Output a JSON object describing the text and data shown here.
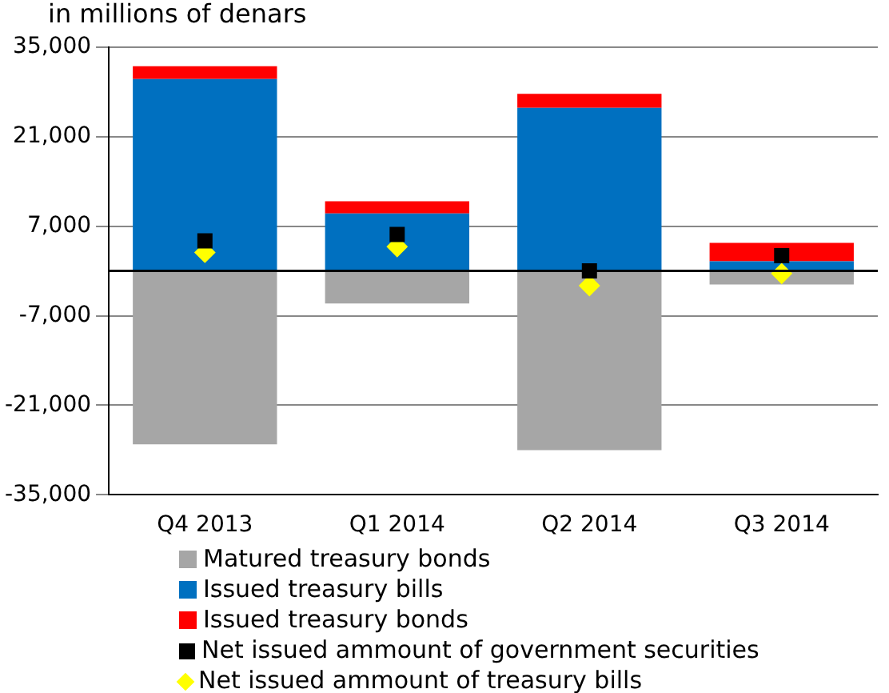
{
  "chart_data": {
    "type": "bar",
    "title": "in millions of denars",
    "stacked": true,
    "categories": [
      "Q4 2013",
      "Q1 2014",
      "Q2 2014",
      "Q3 2014"
    ],
    "series": [
      {
        "name": "Matured treasury bonds",
        "color": "#a6a6a6",
        "values": [
          -27100,
          -5100,
          -28000,
          -2100
        ]
      },
      {
        "name": "Issued treasury bills",
        "color": "#0070c0",
        "values": [
          30000,
          9000,
          25500,
          1500
        ]
      },
      {
        "name": "Issued treasury bonds",
        "color": "#ff0000",
        "values": [
          2000,
          1900,
          2200,
          2900
        ]
      },
      {
        "name": "Net issued ammount of government securities",
        "type": "scatter",
        "marker": "square",
        "color": "#000000",
        "values": [
          4700,
          5700,
          0,
          2400
        ]
      },
      {
        "name": "Net issued ammount of treasury bills",
        "type": "scatter",
        "marker": "diamond",
        "color": "#ffff00",
        "values": [
          2900,
          3800,
          -2300,
          -400
        ]
      }
    ],
    "ylim": [
      -35000,
      35000
    ],
    "yticks": [
      {
        "value": -35000,
        "label": "-35,000"
      },
      {
        "value": -21000,
        "label": "-21,000"
      },
      {
        "value": -7000,
        "label": "-7,000"
      },
      {
        "value": 7000,
        "label": "7,000"
      },
      {
        "value": 21000,
        "label": "21,000"
      },
      {
        "value": 35000,
        "label": "35,000"
      }
    ],
    "grid": "y",
    "legend": "bottom"
  }
}
